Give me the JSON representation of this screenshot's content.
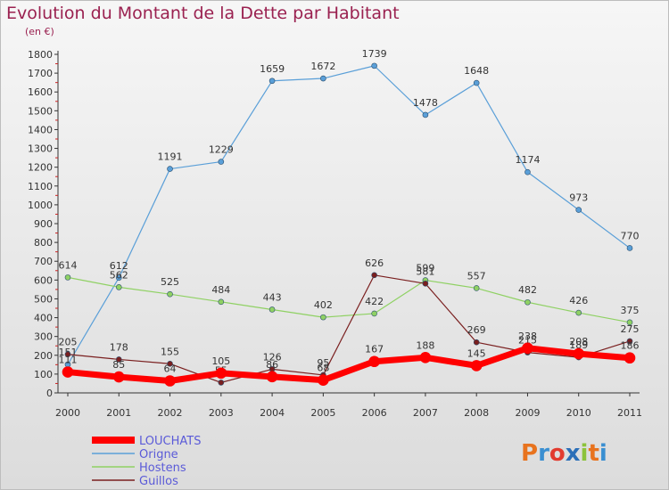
{
  "header": {
    "title": "Evolution du Montant de la Dette par Habitant",
    "subtitle": "(en €)"
  },
  "logo": {
    "text": "Proxiti",
    "colors": [
      "#e8731e",
      "#3a8fd1",
      "#e23b2f",
      "#2c6fb8",
      "#8cc33b",
      "#e8731e",
      "#3a8fd1"
    ]
  },
  "chart_data": {
    "type": "line",
    "categories": [
      "2000",
      "2001",
      "2002",
      "2003",
      "2004",
      "2005",
      "2006",
      "2007",
      "2008",
      "2009",
      "2010",
      "2011"
    ],
    "ylim": [
      0,
      1800
    ],
    "yticks": [
      0,
      100,
      200,
      300,
      400,
      500,
      600,
      700,
      800,
      900,
      1000,
      1100,
      1200,
      1300,
      1400,
      1500,
      1600,
      1700,
      1800
    ],
    "grid": false,
    "legend_position": "bottom-left",
    "series": [
      {
        "name": "Origne",
        "color": "#5a9fd8",
        "width": 1.2,
        "values": [
          151,
          612,
          1191,
          1229,
          1659,
          1672,
          1739,
          1478,
          1648,
          1174,
          973,
          770
        ]
      },
      {
        "name": "Hostens",
        "color": "#8fd163",
        "width": 1.2,
        "values": [
          614,
          562,
          525,
          484,
          443,
          402,
          422,
          599,
          557,
          482,
          426,
          375
        ]
      },
      {
        "name": "Guillos",
        "color": "#7a1f1f",
        "width": 1.2,
        "values": [
          205,
          178,
          155,
          55,
          126,
          95,
          626,
          581,
          269,
          215,
          189,
          275
        ]
      },
      {
        "name": "LOUCHATS",
        "color": "#ff0000",
        "width": 7,
        "values": [
          111,
          85,
          64,
          105,
          86,
          68,
          167,
          188,
          145,
          238,
          208,
          186
        ]
      }
    ]
  }
}
